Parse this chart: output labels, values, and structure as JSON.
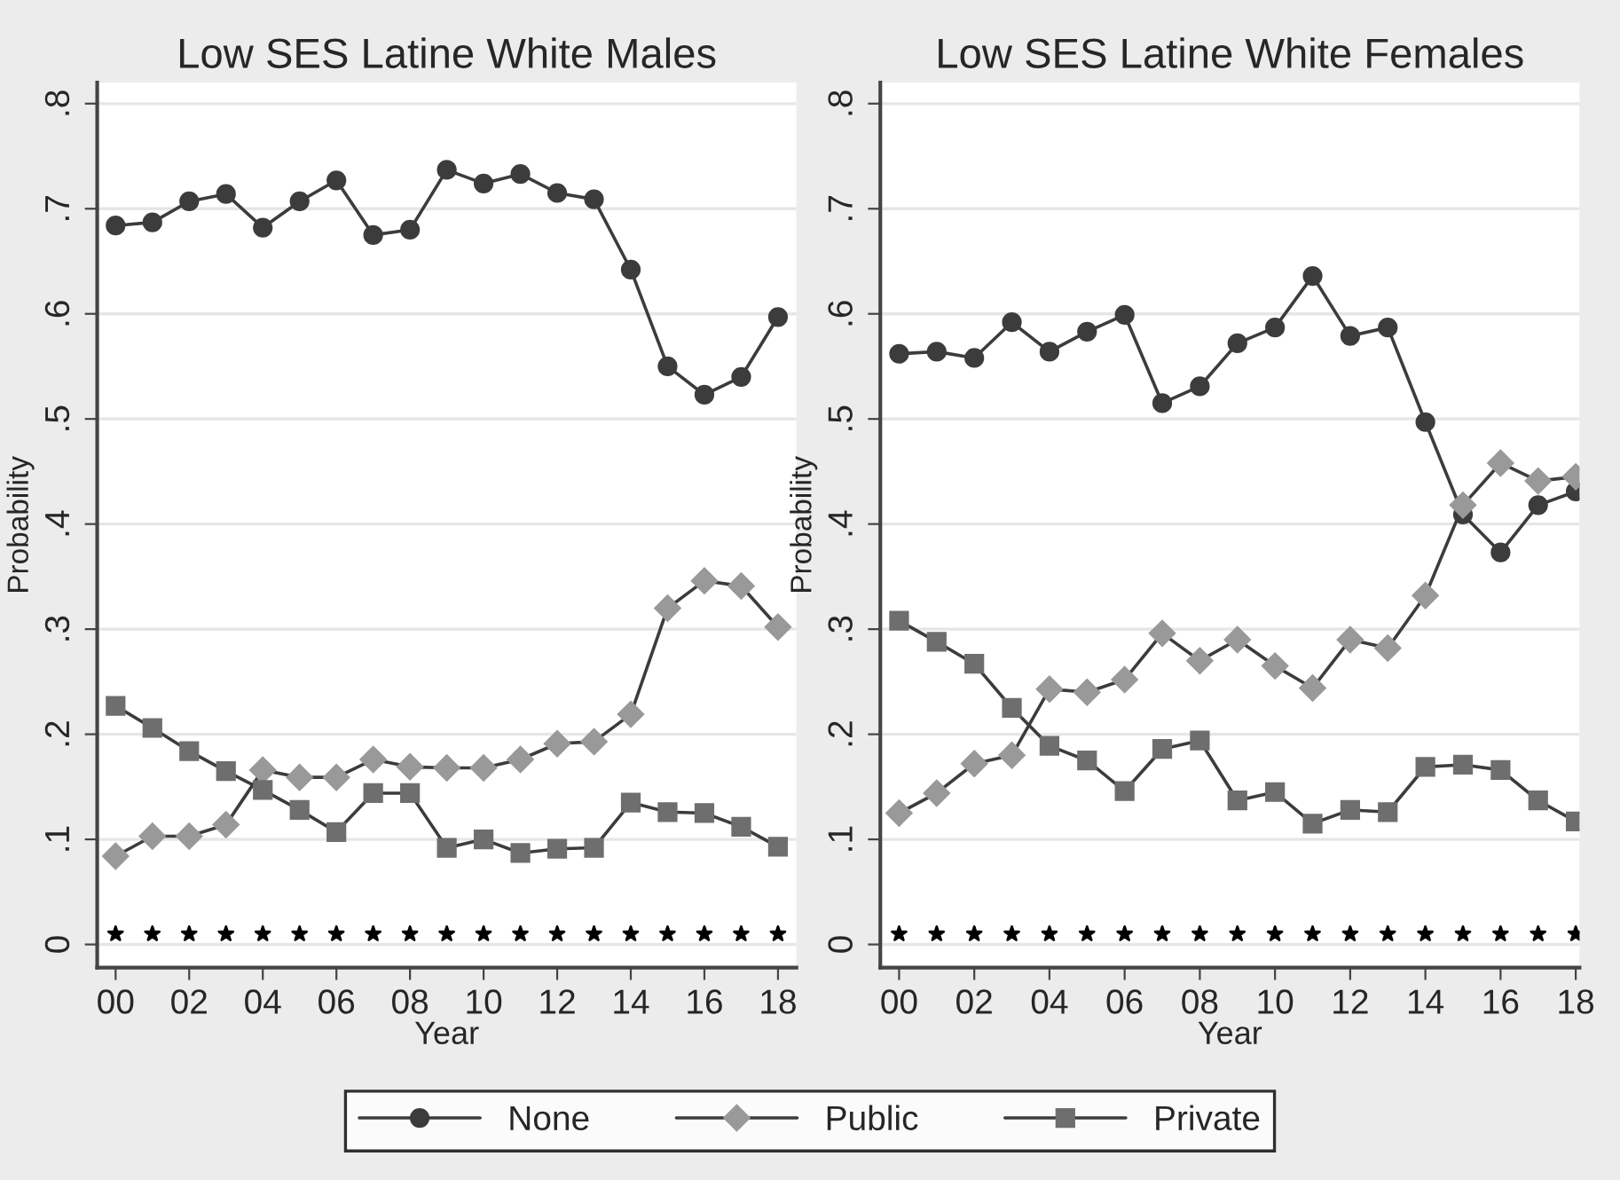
{
  "chart_data": [
    {
      "type": "line",
      "title": "Low SES Latine White Males",
      "xlabel": "Year",
      "ylabel": "Probability",
      "x": [
        0,
        1,
        2,
        3,
        4,
        5,
        6,
        7,
        8,
        9,
        10,
        11,
        12,
        13,
        14,
        15,
        16,
        17,
        18
      ],
      "xlim": [
        -0.5,
        18.5
      ],
      "xticks": [
        {
          "value": 0,
          "label": "00"
        },
        {
          "value": 2,
          "label": "02"
        },
        {
          "value": 4,
          "label": "04"
        },
        {
          "value": 6,
          "label": "06"
        },
        {
          "value": 8,
          "label": "08"
        },
        {
          "value": 10,
          "label": "10"
        },
        {
          "value": 12,
          "label": "12"
        },
        {
          "value": 14,
          "label": "14"
        },
        {
          "value": 16,
          "label": "16"
        },
        {
          "value": 18,
          "label": "18"
        }
      ],
      "ylim": [
        -0.022,
        0.82
      ],
      "yticks": [
        0,
        {
          "value": 0.1,
          "label": ".1"
        },
        {
          "value": 0.2,
          "label": ".2"
        },
        {
          "value": 0.3,
          "label": ".3"
        },
        {
          "value": 0.4,
          "label": ".4"
        },
        {
          "value": 0.5,
          "label": ".5"
        },
        {
          "value": 0.6,
          "label": ".6"
        },
        {
          "value": 0.7,
          "label": ".7"
        },
        {
          "value": 0.8,
          "label": ".8"
        }
      ],
      "grid": "y",
      "legend": "bottom",
      "series": [
        {
          "name": "None",
          "color": "#3c3c3c",
          "marker": "circle",
          "values": [
            0.684,
            0.687,
            0.707,
            0.714,
            0.682,
            0.707,
            0.727,
            0.675,
            0.68,
            0.737,
            0.724,
            0.733,
            0.715,
            0.709,
            0.642,
            0.55,
            0.523,
            0.54,
            0.597
          ]
        },
        {
          "name": "Public",
          "color": "#999999",
          "marker": "diamond",
          "values": [
            0.084,
            0.103,
            0.103,
            0.114,
            0.166,
            0.159,
            0.159,
            0.176,
            0.169,
            0.168,
            0.168,
            0.176,
            0.191,
            0.193,
            0.219,
            0.32,
            0.346,
            0.341,
            0.302
          ]
        },
        {
          "name": "Private",
          "color": "#6e6e6e",
          "marker": "square",
          "values": [
            0.227,
            0.206,
            0.184,
            0.165,
            0.147,
            0.128,
            0.107,
            0.144,
            0.144,
            0.092,
            0.1,
            0.087,
            0.091,
            0.092,
            0.135,
            0.126,
            0.125,
            0.112,
            0.093
          ]
        },
        {
          "type": "scatter",
          "color": "#000000",
          "marker": "star",
          "values": [
            0.01,
            0.01,
            0.01,
            0.01,
            0.01,
            0.01,
            0.01,
            0.01,
            0.01,
            0.01,
            0.01,
            0.01,
            0.01,
            0.01,
            0.01,
            0.01,
            0.01,
            0.01,
            0.01
          ]
        }
      ]
    },
    {
      "type": "line",
      "title": "Low SES Latine White Females",
      "xlabel": "Year",
      "ylabel": "Probability",
      "x": [
        0,
        1,
        2,
        3,
        4,
        5,
        6,
        7,
        8,
        9,
        10,
        11,
        12,
        13,
        14,
        15,
        16,
        17,
        18
      ],
      "xlim": [
        -0.5,
        18.1
      ],
      "xticks": [
        {
          "value": 0,
          "label": "00"
        },
        {
          "value": 2,
          "label": "02"
        },
        {
          "value": 4,
          "label": "04"
        },
        {
          "value": 6,
          "label": "06"
        },
        {
          "value": 8,
          "label": "08"
        },
        {
          "value": 10,
          "label": "10"
        },
        {
          "value": 12,
          "label": "12"
        },
        {
          "value": 14,
          "label": "14"
        },
        {
          "value": 16,
          "label": "16"
        },
        {
          "value": 18,
          "label": "18"
        }
      ],
      "ylim": [
        -0.022,
        0.82
      ],
      "yticks": [
        0,
        {
          "value": 0.1,
          "label": ".1"
        },
        {
          "value": 0.2,
          "label": ".2"
        },
        {
          "value": 0.3,
          "label": ".3"
        },
        {
          "value": 0.4,
          "label": ".4"
        },
        {
          "value": 0.5,
          "label": ".5"
        },
        {
          "value": 0.6,
          "label": ".6"
        },
        {
          "value": 0.7,
          "label": ".7"
        },
        {
          "value": 0.8,
          "label": ".8"
        }
      ],
      "grid": "y",
      "series": [
        {
          "name": "None",
          "color": "#3c3c3c",
          "marker": "circle",
          "values": [
            0.562,
            0.564,
            0.558,
            0.592,
            0.564,
            0.583,
            0.599,
            0.515,
            0.531,
            0.572,
            0.587,
            0.636,
            0.579,
            0.587,
            0.497,
            0.409,
            0.373,
            0.418,
            0.431
          ]
        },
        {
          "name": "Public",
          "color": "#999999",
          "marker": "diamond",
          "values": [
            0.125,
            0.144,
            0.172,
            0.18,
            0.243,
            0.24,
            0.252,
            0.296,
            0.27,
            0.29,
            0.265,
            0.244,
            0.29,
            0.282,
            0.332,
            0.418,
            0.458,
            0.441,
            0.445
          ]
        },
        {
          "name": "Private",
          "color": "#6e6e6e",
          "marker": "square",
          "values": [
            0.308,
            0.288,
            0.267,
            0.225,
            0.189,
            0.175,
            0.146,
            0.186,
            0.194,
            0.137,
            0.145,
            0.115,
            0.128,
            0.126,
            0.169,
            0.171,
            0.166,
            0.137,
            0.117
          ]
        },
        {
          "type": "scatter",
          "color": "#000000",
          "marker": "star",
          "values": [
            0.01,
            0.01,
            0.01,
            0.01,
            0.01,
            0.01,
            0.01,
            0.01,
            0.01,
            0.01,
            0.01,
            0.01,
            0.01,
            0.01,
            0.01,
            0.01,
            0.01,
            0.01,
            0.01
          ]
        }
      ]
    }
  ]
}
